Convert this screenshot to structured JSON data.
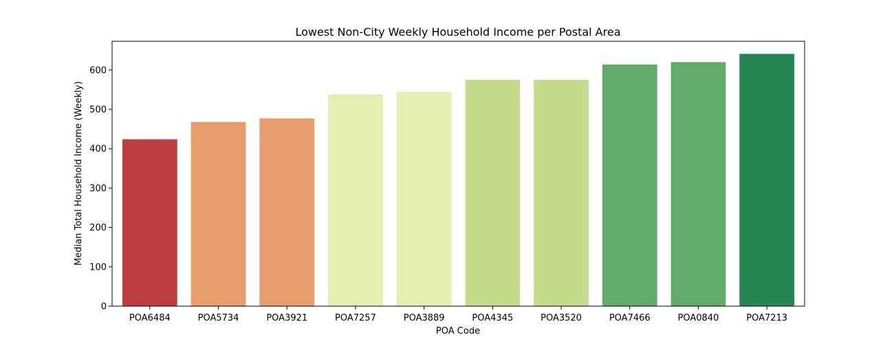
{
  "chart_data": {
    "type": "bar",
    "title": "Lowest Non-City Weekly Household Income per Postal Area",
    "xlabel": "POA Code",
    "ylabel": "Median Total Household Income (Weekly)",
    "categories": [
      "POA6484",
      "POA5734",
      "POA3921",
      "POA7257",
      "POA3889",
      "POA4345",
      "POA3520",
      "POA7466",
      "POA0840",
      "POA7213"
    ],
    "values": [
      424,
      468,
      477,
      538,
      545,
      575,
      575,
      614,
      620,
      641
    ],
    "colors": [
      "#bb3f3e",
      "#e89e6c",
      "#e89e6c",
      "#e6efb1",
      "#e6efb1",
      "#c3db8a",
      "#c3db8a",
      "#62aa69",
      "#62aa69",
      "#268551"
    ],
    "ylim": [
      0,
      673
    ],
    "yticks": [
      0,
      100,
      200,
      300,
      400,
      500,
      600
    ],
    "grid": false,
    "legend": "none"
  }
}
